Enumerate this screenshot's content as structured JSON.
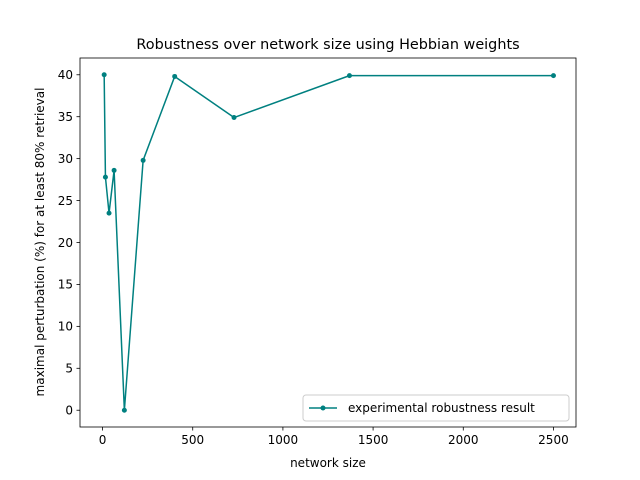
{
  "chart_data": {
    "type": "line",
    "title": "Robustness over network size using Hebbian weights",
    "xlabel": "network size",
    "ylabel": "maximal perturbation (%) for at least 80% retrieval",
    "xlim": [
      -125,
      2625
    ],
    "ylim": [
      -2,
      42
    ],
    "xticks": [
      0,
      500,
      1000,
      1500,
      2000,
      2500
    ],
    "yticks": [
      0,
      5,
      10,
      15,
      20,
      25,
      30,
      35,
      40
    ],
    "grid": false,
    "legend": "bottom-right",
    "series": [
      {
        "name": "experimental robustness result",
        "color": "#008080",
        "marker": "dot",
        "x": [
          9,
          16,
          36,
          64,
          121,
          225,
          400,
          729,
          1369,
          2500
        ],
        "y": [
          40,
          27.8,
          23.5,
          28.6,
          0,
          29.8,
          39.8,
          34.9,
          39.9,
          39.9
        ]
      }
    ]
  }
}
